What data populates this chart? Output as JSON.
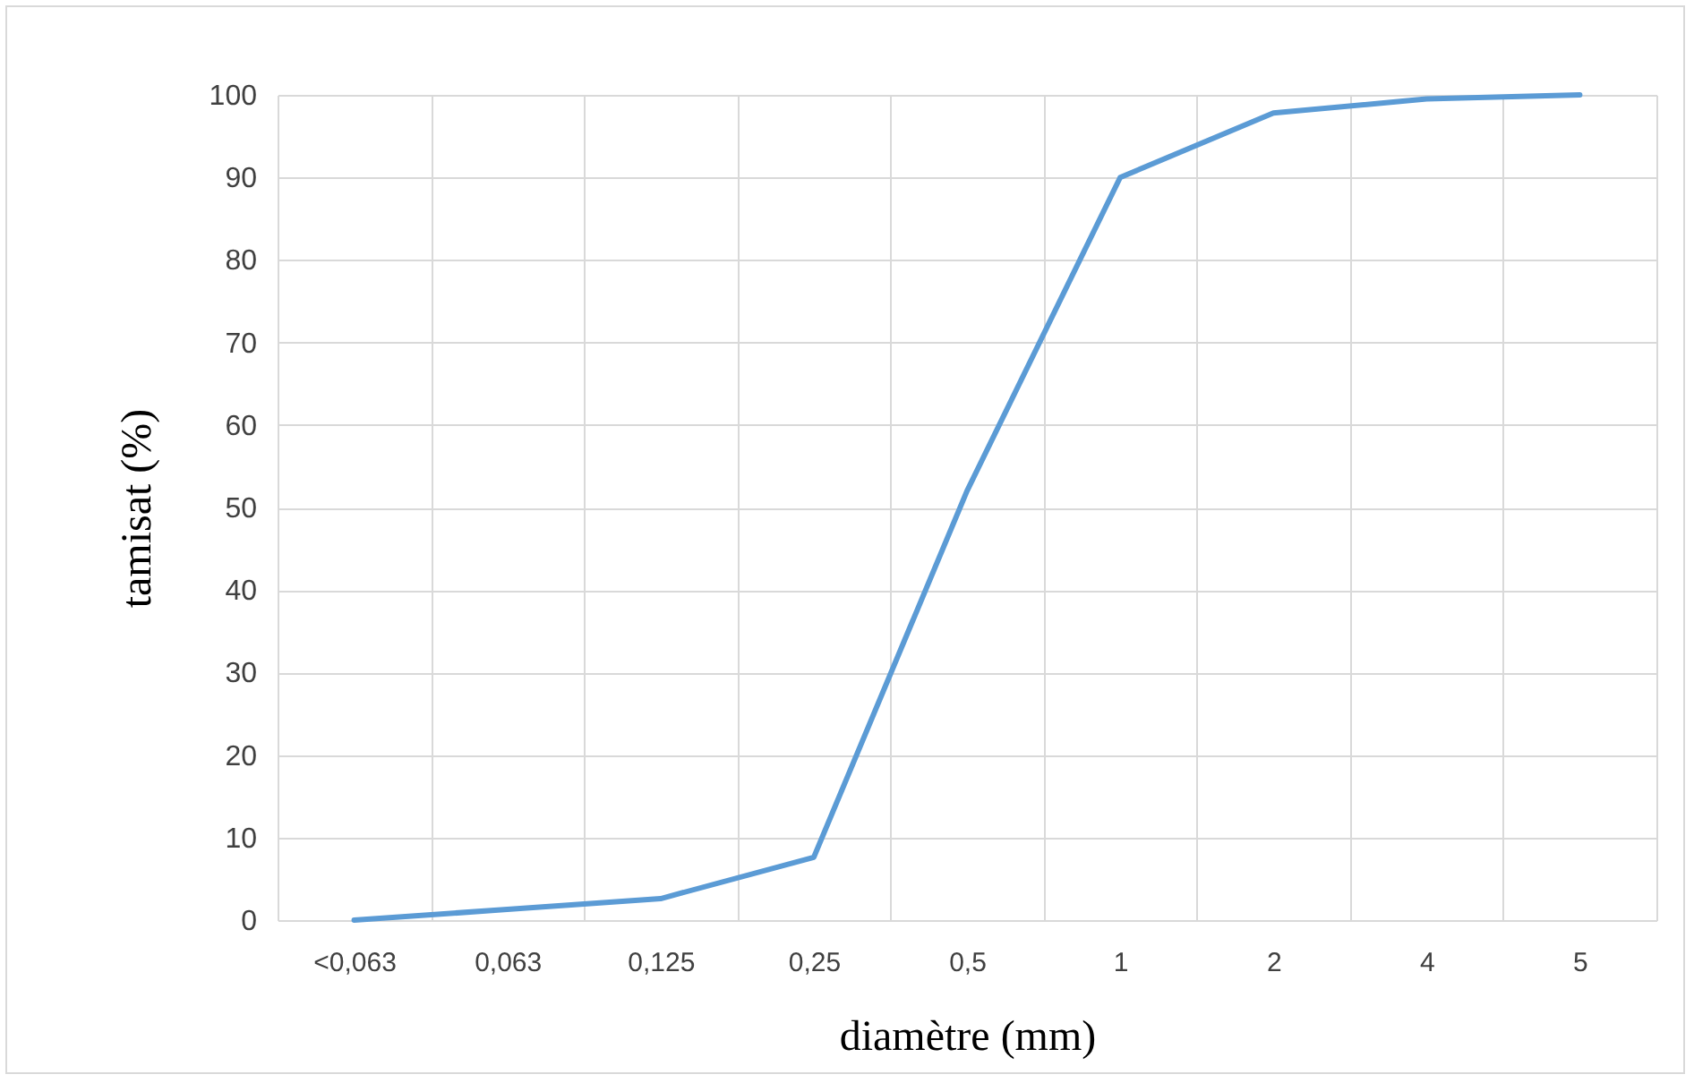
{
  "chart_data": {
    "type": "line",
    "xlabel": "diamètre (mm)",
    "ylabel": "tamisat (%)",
    "categories": [
      "<0,063",
      "0,063",
      "0,125",
      "0,25",
      "0,5",
      "1",
      "2",
      "4",
      "5"
    ],
    "series": [
      {
        "color": "#5b9bd5",
        "values": [
          0,
          1.3,
          2.6,
          7.6,
          52,
          90,
          97.8,
          99.5,
          100
        ]
      }
    ],
    "ylim": [
      0,
      100
    ],
    "yticks": [
      0,
      10,
      20,
      30,
      40,
      50,
      60,
      70,
      80,
      90,
      100
    ],
    "grid": true,
    "marker": "none",
    "line_style": "solid"
  }
}
